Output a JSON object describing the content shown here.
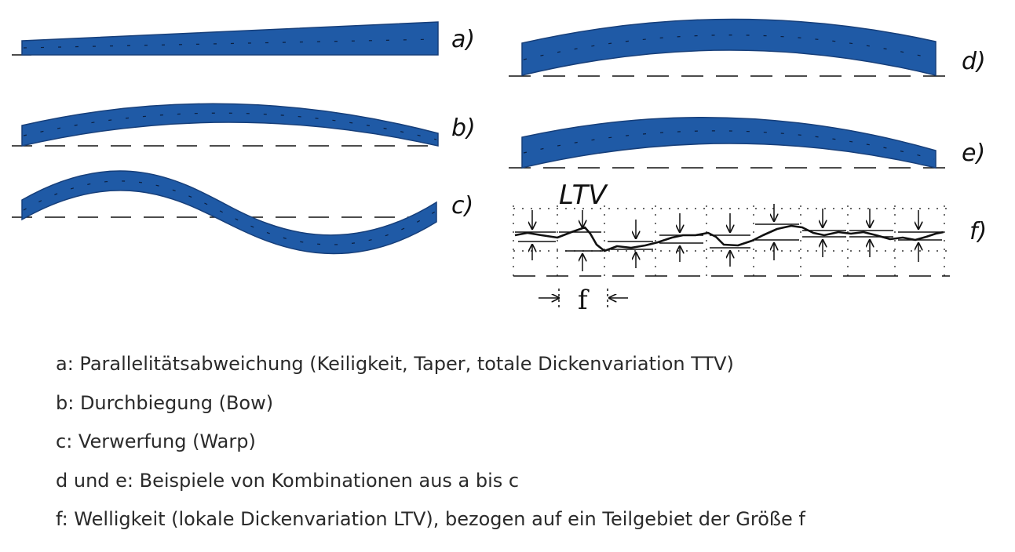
{
  "panels": {
    "a": "a)",
    "b": "b)",
    "c": "c)",
    "d": "d)",
    "e": "e)",
    "f": "f)"
  },
  "ltv_label": "LTV",
  "f_label": "f",
  "colors": {
    "wafer_fill": "#1f5aa6",
    "wafer_stroke": "#173f7a",
    "line": "#111111"
  },
  "legend": [
    "a: Parallelitätsabweichung (Keiligkeit, Taper, totale Dickenvariation TTV)",
    "b: Durchbiegung (Bow)",
    "c: Verwerfung (Warp)",
    "d und e: Beispiele von Kombinationen aus a bis c",
    "f: Welligkeit (lokale Dickenvariation LTV), bezogen auf ein Teilgebiet der Größe f"
  ]
}
